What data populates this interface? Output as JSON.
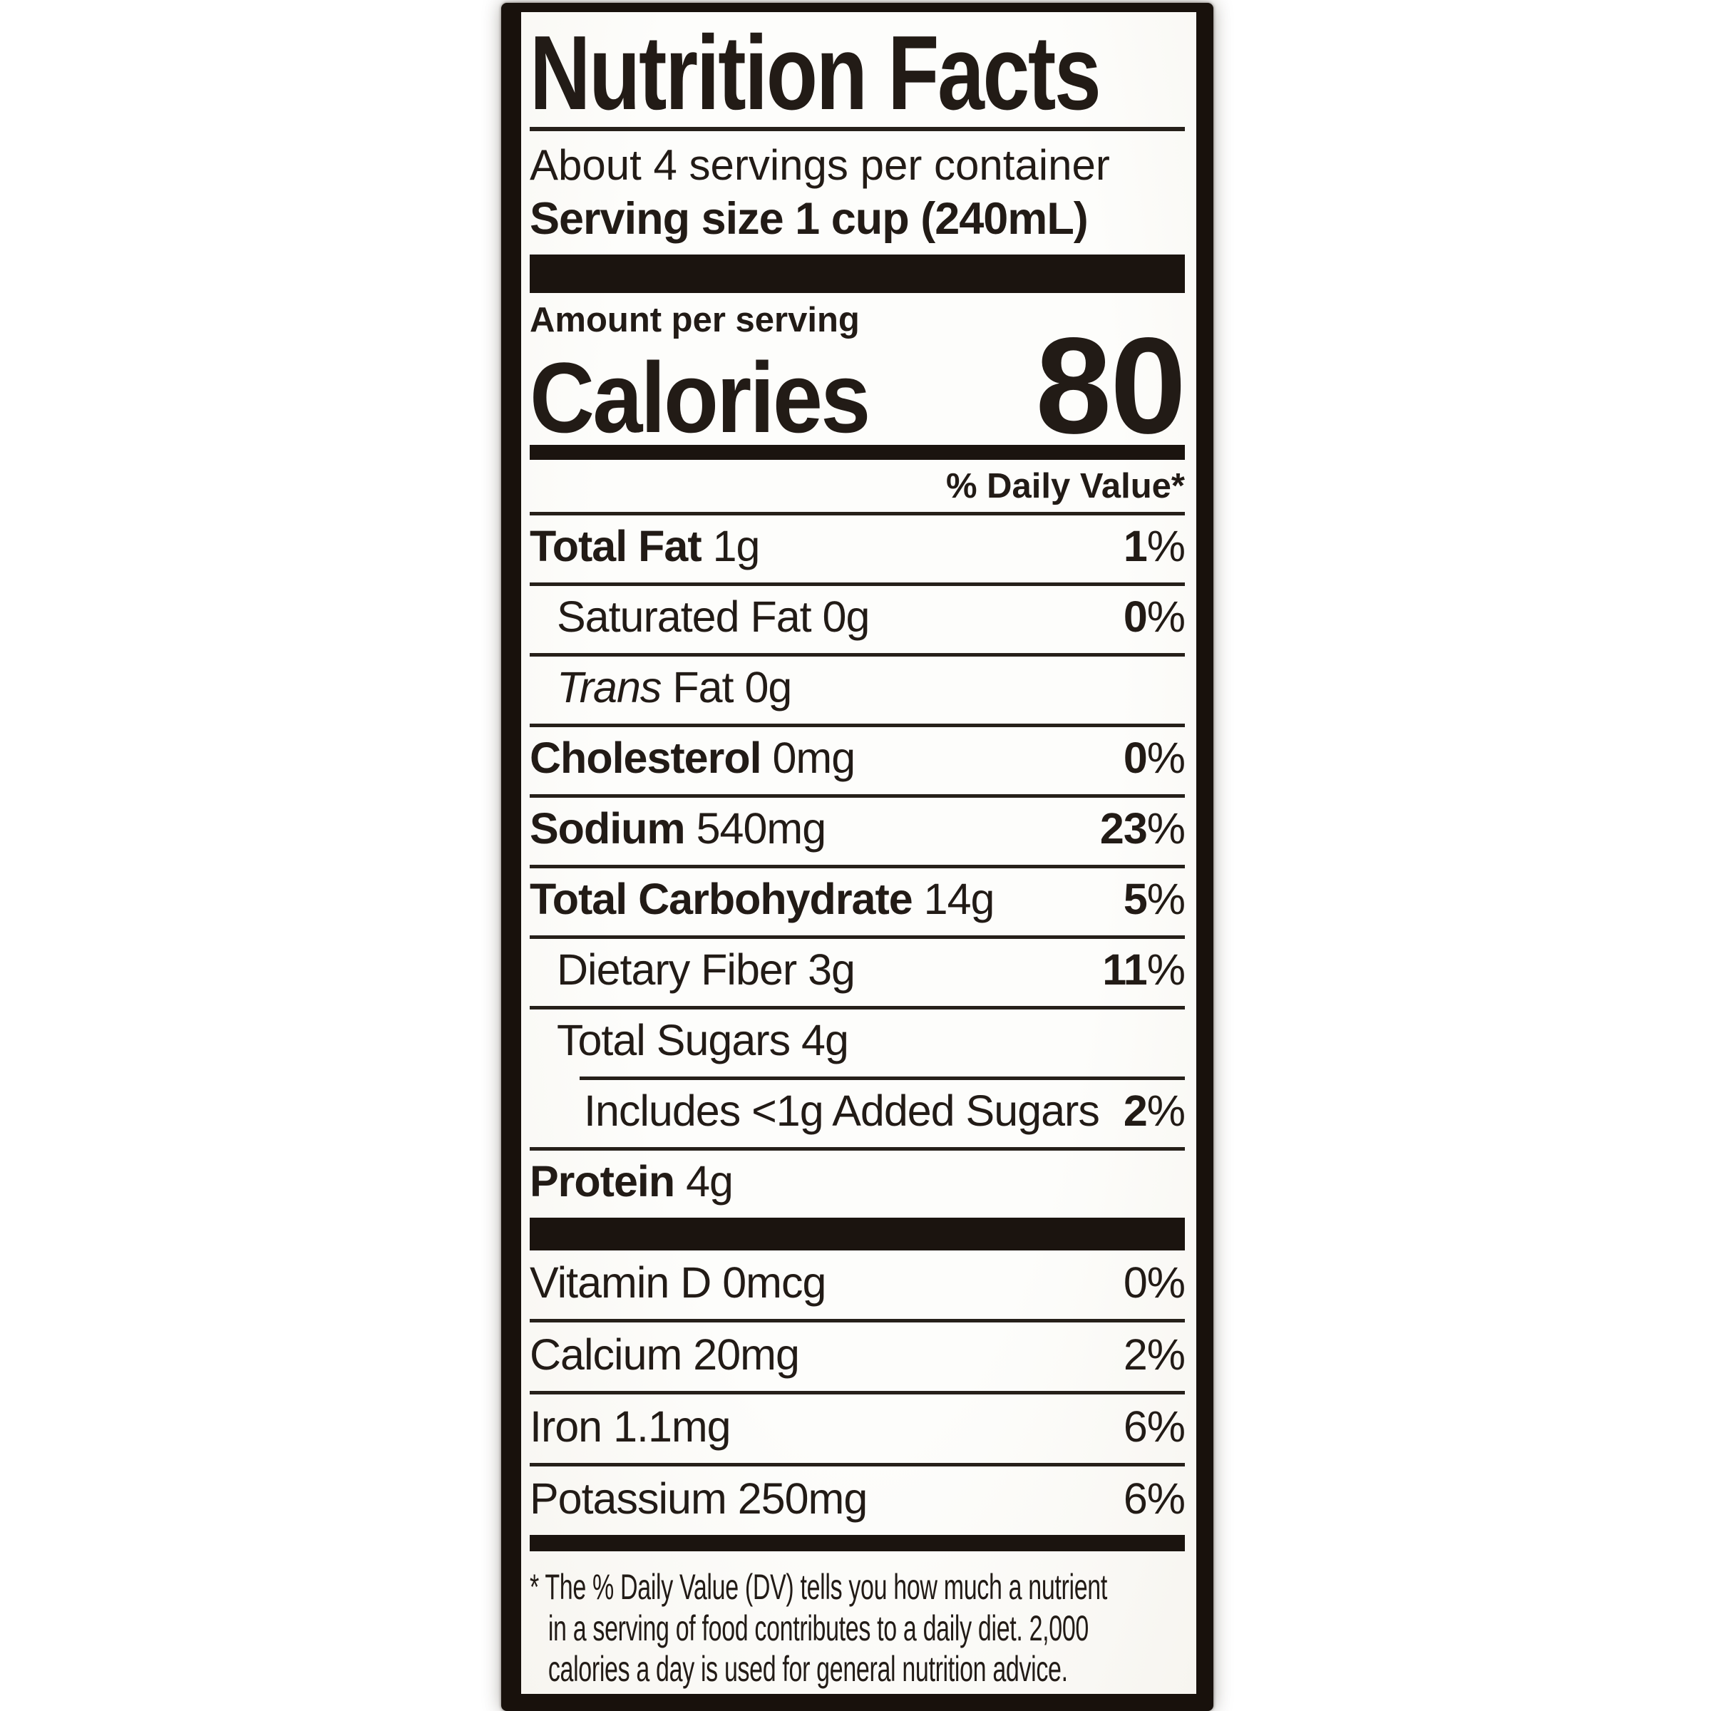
{
  "label": {
    "title": "Nutrition Facts",
    "servings_per_container": "About 4 servings per container",
    "serving_size": "Serving size 1 cup (240mL)",
    "amount_per_serving": "Amount per serving",
    "calories_word": "Calories",
    "calories_value": "80",
    "daily_value_header": "% Daily Value*",
    "percent_suffix": "%",
    "nutrient_rows": [
      {
        "name": "Total Fat",
        "amount": "1g",
        "dv": "1",
        "bold": true,
        "indent": 0
      },
      {
        "name": "Saturated Fat",
        "amount": "0g",
        "dv": "0",
        "bold": false,
        "indent": 1
      },
      {
        "name": "Fat",
        "italic_prefix": "Trans",
        "amount": "0g",
        "dv": null,
        "bold": false,
        "indent": 1
      },
      {
        "name": "Cholesterol",
        "amount": "0mg",
        "dv": "0",
        "bold": true,
        "indent": 0
      },
      {
        "name": "Sodium",
        "amount": "540mg",
        "dv": "23",
        "bold": true,
        "indent": 0
      },
      {
        "name": "Total Carbohydrate",
        "amount": "14g",
        "dv": "5",
        "bold": true,
        "indent": 0
      },
      {
        "name": "Dietary Fiber",
        "amount": "3g",
        "dv": "11",
        "bold": false,
        "indent": 1
      },
      {
        "name": "Total Sugars",
        "amount": "4g",
        "dv": null,
        "bold": false,
        "indent": 1
      },
      {
        "name": "Includes <1g Added Sugars",
        "amount": "",
        "dv": "2",
        "bold": false,
        "indent": 2,
        "rule_indented": true
      },
      {
        "name": "Protein",
        "amount": "4g",
        "dv": null,
        "bold": true,
        "indent": 0
      }
    ],
    "micronutrient_rows": [
      {
        "name": "Vitamin D",
        "amount": "0mcg",
        "dv": "0"
      },
      {
        "name": "Calcium",
        "amount": "20mg",
        "dv": "2"
      },
      {
        "name": "Iron",
        "amount": "1.1mg",
        "dv": "6"
      },
      {
        "name": "Potassium",
        "amount": "250mg",
        "dv": "6"
      }
    ],
    "footnote_lines": [
      "* The % Daily Value (DV) tells you how much a nutrient",
      "in a serving of food contributes to a daily diet. 2,000",
      "calories a day is used for general nutrition advice."
    ]
  },
  "colors": {
    "ink": "#221b16",
    "bars_and_frame": "#18110c",
    "paper": "#fcfbf8",
    "page_background": "#ffffff"
  }
}
